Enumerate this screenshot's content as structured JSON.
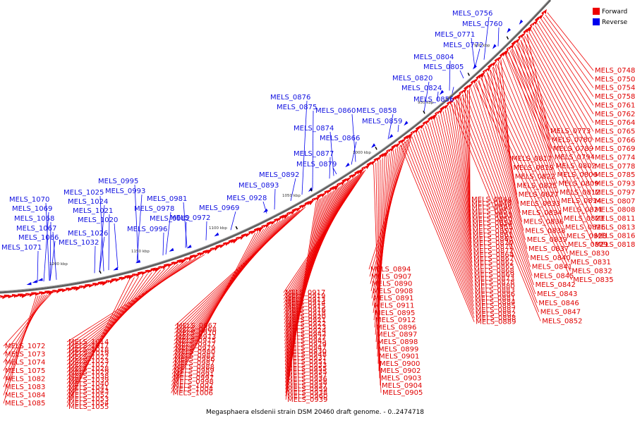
{
  "caption": "Megasphaera elsdenii strain DSM 20460 draft genome. - 0..2474718",
  "legend": [
    {
      "label": "Forward",
      "color": "#ee0000"
    },
    {
      "label": "Reverse",
      "color": "#0000ee"
    }
  ],
  "colors": {
    "forward": "#ee0000",
    "reverse": "#0000ee",
    "backbone": "#555555"
  },
  "ticks": [
    "900 kbp",
    "950 kbp",
    "1000 kbp",
    "1050 kbp",
    "1100 kbp",
    "1150 kbp",
    "1200 kbp"
  ],
  "reverse_labels": [
    "MELS_0756",
    "MELS_0760",
    "MELS_0771",
    "MELS_0772",
    "MELS_0804",
    "MELS_0805",
    "MELS_0820",
    "MELS_0824",
    "MELS_0856",
    "MELS_0876",
    "MELS_0875",
    "MELS_0860",
    "MELS_0858",
    "MELS_0859",
    "MELS_0874",
    "MELS_0866",
    "MELS_0877",
    "MELS_0879",
    "MELS_0892",
    "MELS_0893",
    "MELS_0928",
    "MELS_0969",
    "MELS_0972",
    "MELS_0981",
    "MELS_0978",
    "MELS_0982",
    "MELS_0995",
    "MELS_0993",
    "MELS_0996",
    "MELS_1025",
    "MELS_1024",
    "MELS_1021",
    "MELS_1020",
    "MELS_1026",
    "MELS_1032",
    "MELS_1070",
    "MELS_1069",
    "MELS_1068",
    "MELS_1067",
    "MELS_1066",
    "MELS_1071"
  ],
  "forward_right": [
    "MELS_0748",
    "MELS_0750",
    "MELS_0754",
    "MELS_0758",
    "MELS_0761",
    "MELS_0762",
    "MELS_0764",
    "MELS_0765",
    "MELS_0766",
    "MELS_0769",
    "MELS_0774",
    "MELS_0778",
    "MELS_0785",
    "MELS_0793",
    "MELS_0797",
    "MELS_0807",
    "MELS_0808",
    "MELS_0811",
    "MELS_0813",
    "MELS_0816",
    "MELS_0818"
  ],
  "forward_mid": [
    "MELS_0773",
    "MELS_0780",
    "MELS_0789",
    "MELS_0794",
    "MELS_0802",
    "MELS_0806",
    "MELS_0809",
    "MELS_0812",
    "MELS_0814",
    "MELS_0821",
    "MELS_0823",
    "MELS_0826",
    "MELS_0828",
    "MELS_0829",
    "MELS_0830",
    "MELS_0831",
    "MELS_0832",
    "MELS_0835"
  ],
  "forward_band3": [
    "MELS_0817",
    "MELS_0819",
    "MELS_0822",
    "MELS_0825",
    "MELS_0827",
    "MELS_0833",
    "MELS_0834",
    "MELS_0836",
    "MELS_0838",
    "MELS_0839",
    "MELS_0837",
    "MELS_0840",
    "MELS_0841",
    "MELS_0845",
    "MELS_0842",
    "MELS_0843",
    "MELS_0846",
    "MELS_0847",
    "MELS_0852"
  ],
  "forward_band4": [
    "MELS_0844",
    "MELS_0848",
    "MELS_0849",
    "MELS_0851",
    "MELS_0853",
    "MELS_0850",
    "MELS_0854",
    "MELS_0855",
    "MELS_0857",
    "MELS_0861",
    "MELS_0863",
    "MELS_0870",
    "MELS_0871",
    "MELS_0872",
    "MELS_0864",
    "MELS_0867",
    "MELS_0862",
    "MELS_0865",
    "MELS_0868",
    "MELS_0869",
    "MELS_0873",
    "MELS_0878",
    "MELS_0880",
    "MELS_0883",
    "MELS_0886",
    "MELS_0881",
    "MELS_0884",
    "MELS_0885",
    "MELS_0887",
    "MELS_0882",
    "MELS_0888",
    "MELS_0889"
  ],
  "forward_band5": [
    "MELS_0894",
    "MELS_0907",
    "MELS_0890",
    "MELS_0908",
    "MELS_0891",
    "MELS_0911",
    "MELS_0895",
    "MELS_0912",
    "MELS_0896",
    "MELS_0897",
    "MELS_0898",
    "MELS_0899",
    "MELS_0901",
    "MELS_0900",
    "MELS_0902",
    "MELS_0903",
    "MELS_0904",
    "MELS_0905"
  ],
  "forward_band6": [
    "MELS_0917",
    "MELS_0919",
    "MELS_0913",
    "MELS_0914",
    "MELS_0915",
    "MELS_0916",
    "MELS_0918",
    "MELS_0920",
    "MELS_0921",
    "MELS_0922",
    "MELS_0923",
    "MELS_0924",
    "MELS_0942",
    "MELS_0927",
    "MELS_0945",
    "MELS_0929",
    "MELS_0947",
    "MELS_0930",
    "MELS_0948",
    "MELS_0931",
    "MELS_0951",
    "MELS_0933",
    "MELS_0955",
    "MELS_0935",
    "MELS_0957",
    "MELS_0936",
    "MELS_0958",
    "MELS_0937",
    "MELS_0959",
    "MELS_0938",
    "MELS_0960",
    "MELS_0939"
  ],
  "forward_band7": [
    "MELS_0967",
    "MELS_0968",
    "MELS_0970",
    "MELS_0973",
    "MELS_0975",
    "MELS_0977",
    "MELS_0979",
    "MELS_0980",
    "MELS_0983",
    "MELS_0986",
    "MELS_0987",
    "MELS_0988",
    "MELS_0989",
    "MELS_0991",
    "MELS_0997",
    "MELS_0998",
    "MELS_1002",
    "MELS_1004",
    "MELS_1006"
  ],
  "forward_band8": [
    "MELS_1014",
    "MELS_1017",
    "MELS_1018",
    "MELS_1019",
    "MELS_1022",
    "MELS_1023",
    "MELS_1027",
    "MELS_1028",
    "MELS_1029",
    "MELS_1038",
    "MELS_1039",
    "MELS_1040",
    "MELS_1041",
    "MELS_1043",
    "MELS_1052",
    "MELS_1053",
    "MELS_1054",
    "MELS_1055"
  ],
  "forward_band9": [
    "MELS_1072",
    "MELS_1073",
    "MELS_1074",
    "MELS_1075",
    "MELS_1082",
    "MELS_1083",
    "MELS_1084",
    "MELS_1085"
  ]
}
